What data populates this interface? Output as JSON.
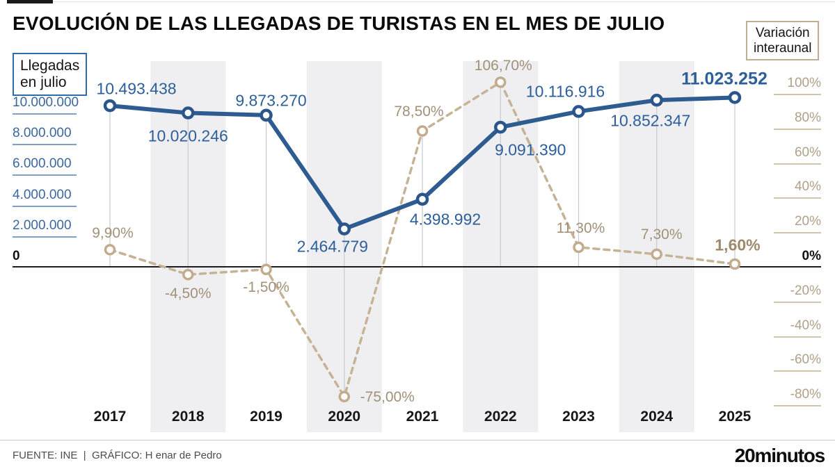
{
  "header": {
    "title": "EVOLUCIÓN DE LAS LLEGADAS DE TURISTAS EN EL MES DE JULIO"
  },
  "legend": {
    "arrivals": {
      "line1": "Llegadas",
      "line2": "en julio"
    },
    "variation": {
      "line1": "Variación",
      "line2": "interaunal"
    }
  },
  "chart_data": {
    "type": "line",
    "title": "EVOLUCIÓN DE LAS LLEGADAS DE TURISTAS EN EL MES DE JULIO",
    "categories": [
      "2017",
      "2018",
      "2019",
      "2020",
      "2021",
      "2022",
      "2023",
      "2024",
      "2025"
    ],
    "series": [
      {
        "name": "Llegadas en julio",
        "axis": "left",
        "color": "#2e5c91",
        "values": [
          10493438,
          10020246,
          9873270,
          2464779,
          4398992,
          9091390,
          10116916,
          10852347,
          11023252
        ],
        "labels": [
          "10.493.438",
          "10.020.246",
          "9.873.270",
          "2.464.779",
          "4.398.992",
          "9.091.390",
          "10.116.916",
          "10.852.347",
          "11.023.252"
        ]
      },
      {
        "name": "Variación interaunal",
        "axis": "right",
        "color": "#c6b295",
        "values": [
          9.9,
          -4.5,
          -1.5,
          -75.0,
          78.5,
          106.7,
          11.3,
          7.3,
          1.6
        ],
        "labels": [
          "9,90%",
          "-4,50%",
          "-1,50%",
          "-75,00%",
          "78,50%",
          "106,70%",
          "11,30%",
          "7,30%",
          "1,60%"
        ]
      }
    ],
    "left_axis": {
      "tick_values": [
        10000000,
        8000000,
        6000000,
        4000000,
        2000000,
        0
      ],
      "tick_labels": [
        "10.000.000",
        "8.000.000",
        "6.000.000",
        "4.000.000",
        "2.000.000",
        "0"
      ],
      "range": [
        0,
        11023252
      ]
    },
    "right_axis": {
      "tick_values": [
        100,
        80,
        60,
        40,
        20,
        0,
        -20,
        -40,
        -60,
        -80
      ],
      "tick_labels": [
        "100%",
        "80%",
        "60%",
        "40%",
        "20%",
        "0%",
        "-20%",
        "-40%",
        "-60%",
        "-80%"
      ],
      "range": [
        -80,
        106.7
      ]
    },
    "grid": "vertical-connectors",
    "band_years": [
      "2018",
      "2020",
      "2022",
      "2024"
    ],
    "legend_position": "top"
  },
  "footer": {
    "source": "FUENTE: INE",
    "separator": "|",
    "credit": "GRÁFICO: H enar de Pedro",
    "logo": "20minutos"
  }
}
